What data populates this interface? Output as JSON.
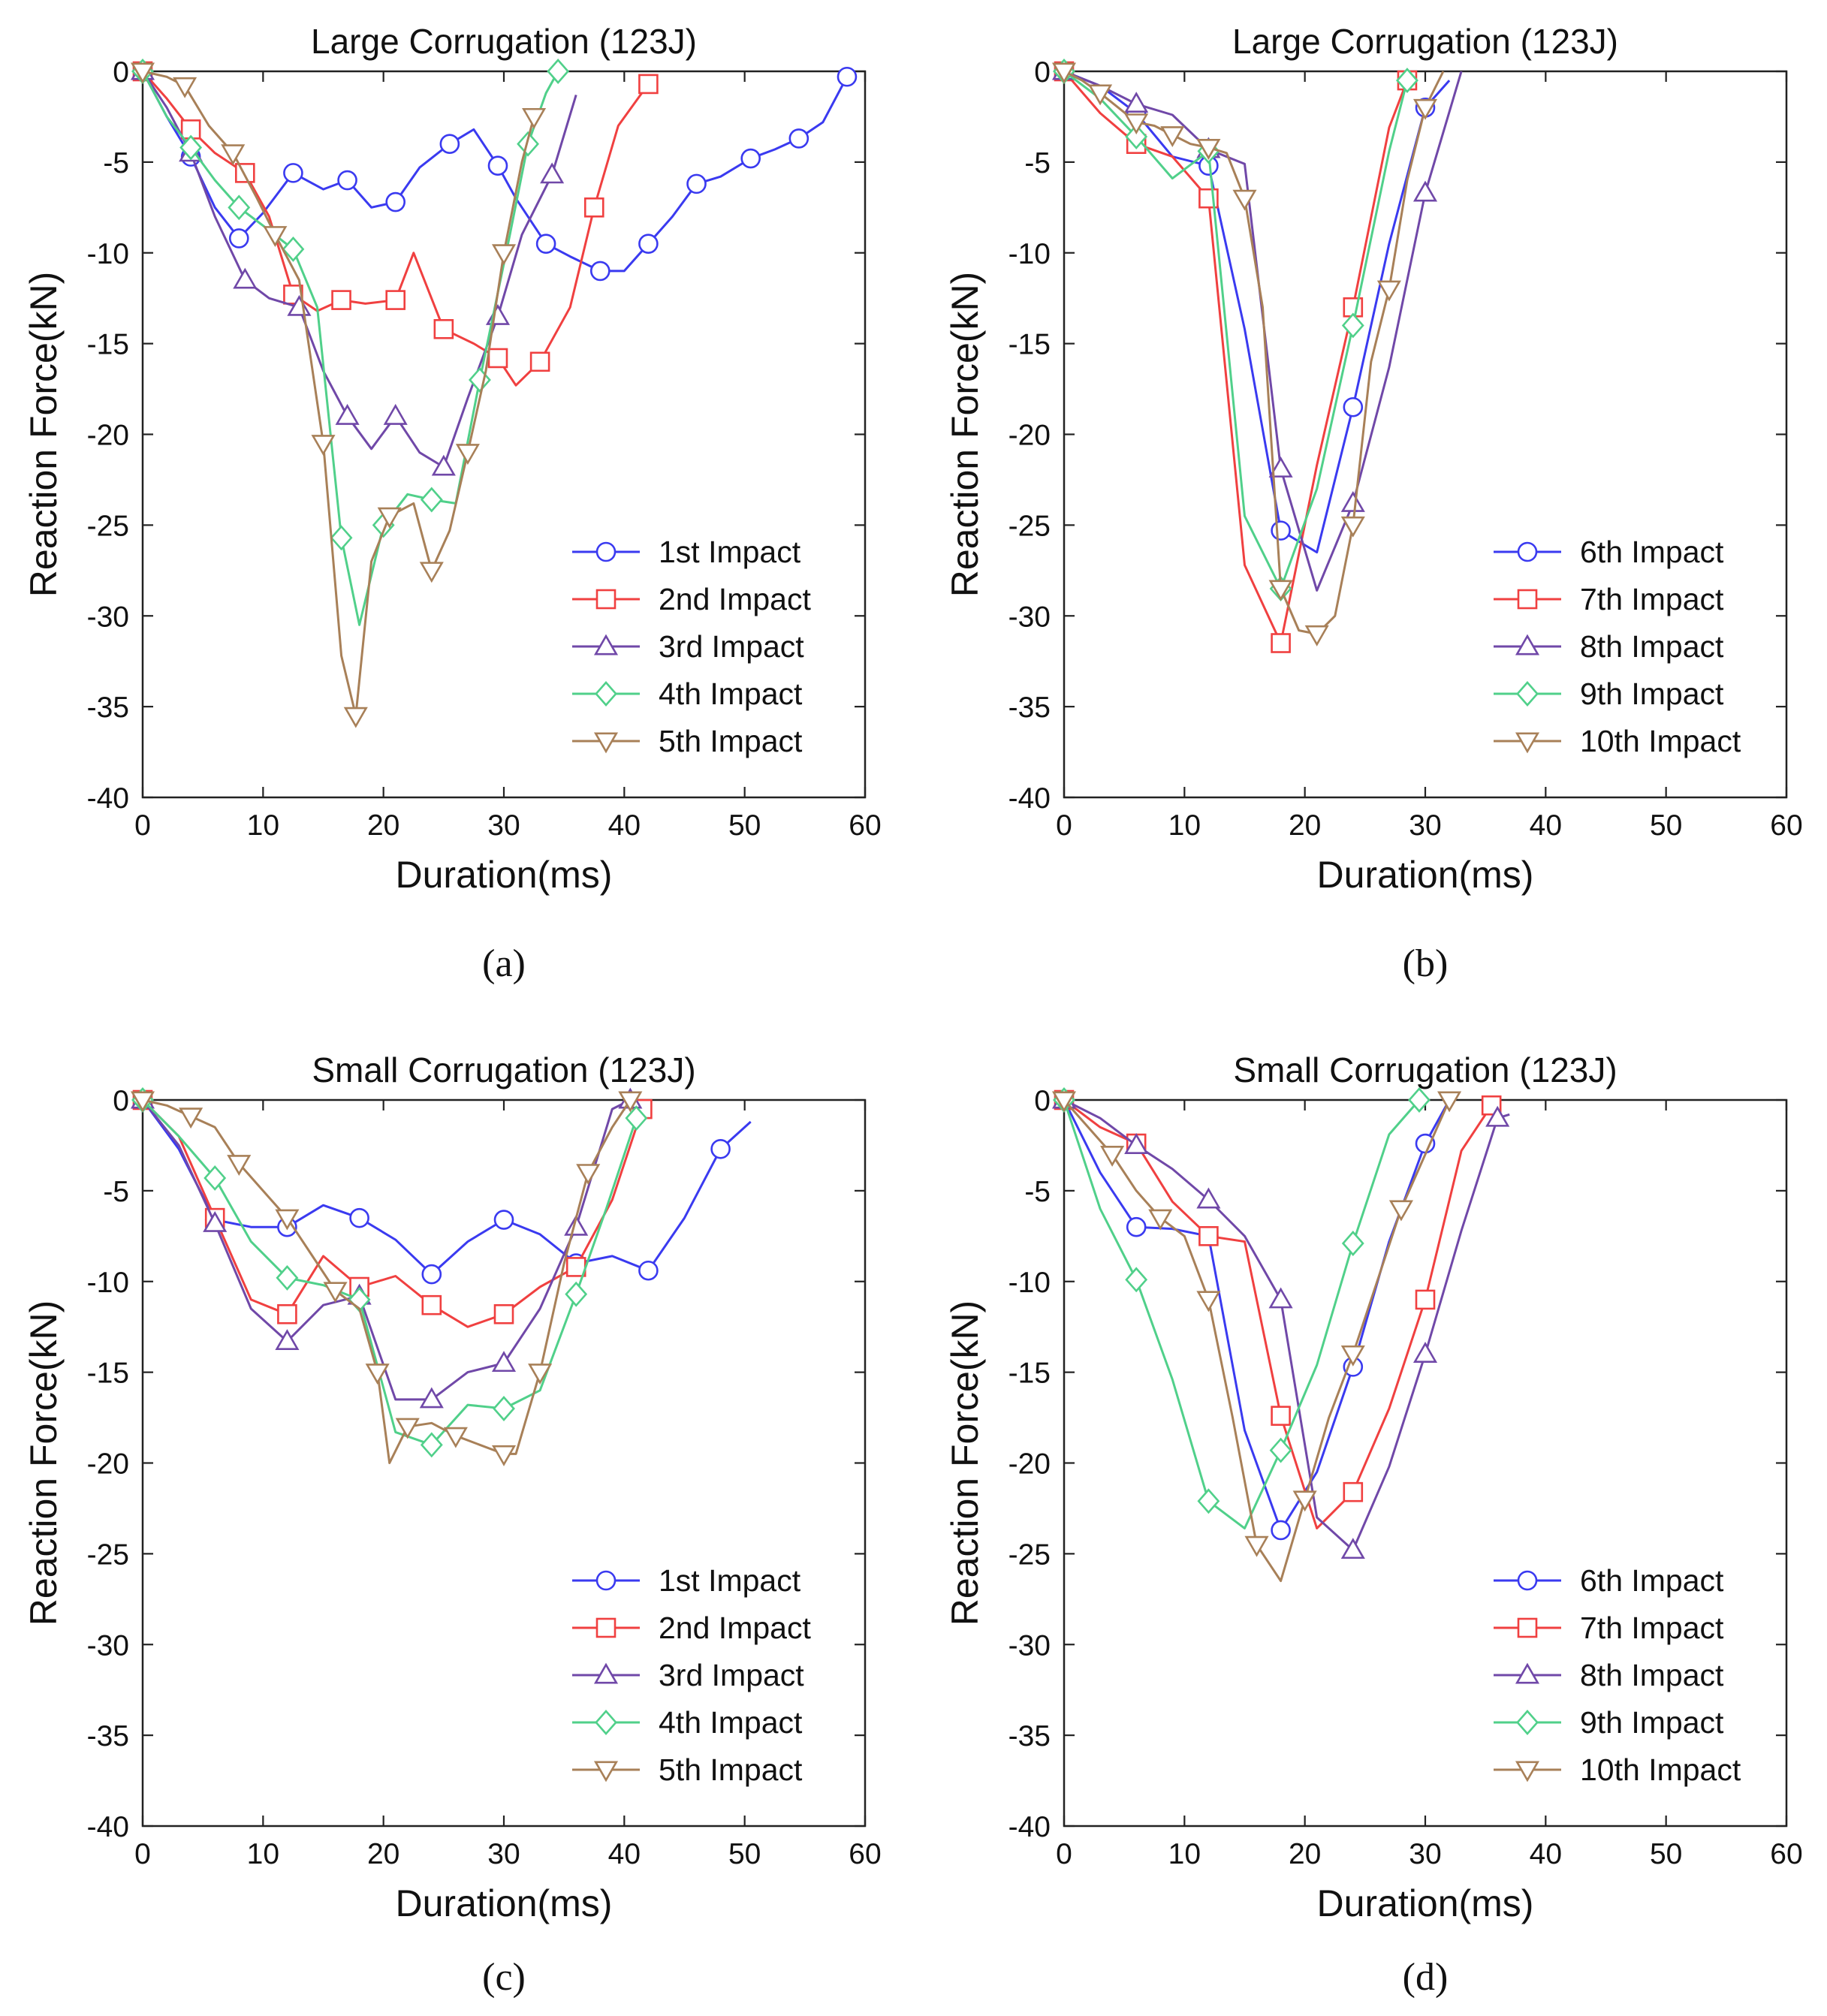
{
  "chart_data": [
    {
      "type": "line",
      "panel_label": "(a)",
      "title": "Large Corrugation (123J)",
      "xlabel": "Duration(ms)",
      "ylabel": "Reaction Force(kN)",
      "xlim": [
        0,
        60
      ],
      "ylim": [
        -40,
        0
      ],
      "xticks": [
        0,
        10,
        20,
        30,
        40,
        50,
        60
      ],
      "yticks": [
        0,
        -5,
        -10,
        -15,
        -20,
        -25,
        -30,
        -35,
        -40
      ],
      "grid": false,
      "legend_position": "bottom-right",
      "series": [
        {
          "name": "1st Impact",
          "color": "#3a3af0",
          "marker": "circle",
          "x": [
            0,
            2,
            4,
            6,
            8,
            10,
            12.5,
            15,
            17,
            19,
            21,
            23,
            25.5,
            27.5,
            29.5,
            31,
            33.5,
            35.5,
            38,
            40,
            42,
            44,
            46,
            48,
            50.5,
            52.5,
            54.5,
            56.5,
            58.5
          ],
          "y": [
            0,
            -2.5,
            -4.7,
            -7.5,
            -9.2,
            -7.8,
            -5.6,
            -6.5,
            -6.0,
            -7.5,
            -7.2,
            -5.3,
            -4.0,
            -3.2,
            -5.2,
            -7.0,
            -9.5,
            -10.2,
            -11.0,
            -11.0,
            -9.5,
            -8.0,
            -6.2,
            -5.8,
            -4.8,
            -4.3,
            -3.7,
            -2.8,
            -0.3
          ]
        },
        {
          "name": "2nd Impact",
          "color": "#f04040",
          "marker": "square",
          "x": [
            0,
            2,
            4,
            6,
            8.5,
            10.5,
            12.5,
            14.5,
            16.5,
            18.5,
            21,
            22.5,
            25,
            27.5,
            29.5,
            31,
            33,
            35.5,
            37.5,
            39.5,
            42
          ],
          "y": [
            0,
            -1.5,
            -3.2,
            -4.5,
            -5.6,
            -8.0,
            -12.3,
            -13.2,
            -12.6,
            -12.8,
            -12.6,
            -10.0,
            -14.2,
            -15.0,
            -15.8,
            -17.3,
            -16.0,
            -13.0,
            -7.5,
            -3.0,
            -0.7
          ]
        },
        {
          "name": "3rd Impact",
          "color": "#7048a8",
          "marker": "triangle-up",
          "x": [
            0,
            2,
            4,
            6,
            8.5,
            10.5,
            13,
            15,
            17,
            19,
            21,
            23,
            25,
            27,
            29.5,
            31.5,
            34,
            36
          ],
          "y": [
            0,
            -2.0,
            -4.5,
            -8.0,
            -11.5,
            -12.5,
            -13.0,
            -16.5,
            -19.0,
            -20.8,
            -19.0,
            -21.0,
            -21.8,
            -18.0,
            -13.5,
            -9.0,
            -5.7,
            -1.3
          ]
        },
        {
          "name": "4th Impact",
          "color": "#50d08a",
          "marker": "diamond",
          "x": [
            0,
            2,
            4,
            6,
            8,
            10,
            12.5,
            14.5,
            16.5,
            18,
            20,
            22,
            24,
            26,
            28,
            30.5,
            32,
            33.5,
            34.5
          ],
          "y": [
            0,
            -2.5,
            -4.2,
            -6.0,
            -7.5,
            -8.5,
            -9.8,
            -13.0,
            -25.7,
            -30.5,
            -25.0,
            -23.3,
            -23.6,
            -23.8,
            -17.0,
            -9.0,
            -4.0,
            -1.2,
            0
          ]
        },
        {
          "name": "5th Impact",
          "color": "#a88058",
          "marker": "triangle-down",
          "x": [
            0,
            2,
            3.5,
            5.5,
            7.5,
            9.5,
            11,
            13,
            15,
            16.5,
            17.7,
            19,
            20.5,
            22.5,
            24,
            25.5,
            27,
            28.5,
            30,
            31.5,
            32.5
          ],
          "y": [
            0,
            -0.3,
            -0.8,
            -3.0,
            -4.5,
            -7.0,
            -9.0,
            -11.5,
            -20.5,
            -32.2,
            -35.5,
            -27.0,
            -24.5,
            -23.8,
            -27.5,
            -25.3,
            -21.0,
            -16.5,
            -10.0,
            -5.0,
            -2.5
          ]
        }
      ]
    },
    {
      "type": "line",
      "panel_label": "(b)",
      "title": "Large Corrugation (123J)",
      "xlabel": "Duration(ms)",
      "ylabel": "Reaction Force(kN)",
      "xlim": [
        0,
        60
      ],
      "ylim": [
        -40,
        0
      ],
      "xticks": [
        0,
        10,
        20,
        30,
        40,
        50,
        60
      ],
      "yticks": [
        0,
        -5,
        -10,
        -15,
        -20,
        -25,
        -30,
        -35,
        -40
      ],
      "grid": false,
      "legend_position": "bottom-right",
      "series": [
        {
          "name": "6th Impact",
          "color": "#3a3af0",
          "marker": "circle",
          "x": [
            0,
            3,
            6,
            9,
            12,
            15,
            18,
            21,
            24,
            27,
            30,
            32
          ],
          "y": [
            0,
            -0.8,
            -2.3,
            -4.7,
            -5.2,
            -14.2,
            -25.3,
            -26.5,
            -18.5,
            -9.5,
            -2.0,
            -0.5
          ]
        },
        {
          "name": "7th Impact",
          "color": "#f04040",
          "marker": "square",
          "x": [
            0,
            3,
            6,
            9,
            12,
            15,
            18,
            21,
            24,
            27,
            28.5
          ],
          "y": [
            0,
            -2.3,
            -4.0,
            -4.7,
            -7.0,
            -27.2,
            -31.5,
            -21.7,
            -13.0,
            -3.1,
            -0.5
          ]
        },
        {
          "name": "8th Impact",
          "color": "#7048a8",
          "marker": "triangle-up",
          "x": [
            0,
            3,
            6,
            9,
            12,
            15,
            18,
            21,
            24,
            27,
            30,
            33
          ],
          "y": [
            0,
            -0.8,
            -1.8,
            -2.4,
            -4.3,
            -5.1,
            -21.9,
            -28.6,
            -23.8,
            -16.3,
            -6.7,
            0
          ]
        },
        {
          "name": "9th Impact",
          "color": "#50d08a",
          "marker": "diamond",
          "x": [
            0,
            3,
            6,
            9,
            12,
            15,
            18,
            21,
            24,
            27,
            28.5
          ],
          "y": [
            0,
            -1.5,
            -3.6,
            -5.9,
            -4.4,
            -24.5,
            -28.5,
            -23.0,
            -14.0,
            -4.4,
            -0.5
          ]
        },
        {
          "name": "10th Impact",
          "color": "#a88058",
          "marker": "triangle-down",
          "x": [
            0,
            1.5,
            3,
            4.5,
            6,
            7.5,
            9,
            10.5,
            12,
            13.5,
            15,
            16.5,
            18,
            19.5,
            21,
            22.5,
            24,
            25.5,
            27,
            28.5,
            30,
            31.5
          ],
          "y": [
            0,
            -0.5,
            -1.2,
            -2.0,
            -2.8,
            -3.0,
            -3.5,
            -4.0,
            -4.2,
            -4.5,
            -7.0,
            -13.0,
            -28.5,
            -30.8,
            -31.0,
            -30.0,
            -25.0,
            -16.0,
            -12.0,
            -6.0,
            -2.0,
            0
          ]
        }
      ]
    },
    {
      "type": "line",
      "panel_label": "(c)",
      "title": "Small Corrugation (123J)",
      "xlabel": "Duration(ms)",
      "ylabel": "Reaction Force(kN)",
      "xlim": [
        0,
        60
      ],
      "ylim": [
        -40,
        0
      ],
      "xticks": [
        0,
        10,
        20,
        30,
        40,
        50,
        60
      ],
      "yticks": [
        0,
        -5,
        -10,
        -15,
        -20,
        -25,
        -30,
        -35,
        -40
      ],
      "grid": false,
      "legend_position": "bottom-right",
      "series": [
        {
          "name": "1st Impact",
          "color": "#3a3af0",
          "marker": "circle",
          "x": [
            0,
            3,
            6,
            9,
            12,
            15,
            18,
            21,
            24,
            27,
            30,
            33,
            36,
            39,
            42,
            45,
            48,
            50.5
          ],
          "y": [
            0,
            -2.7,
            -6.6,
            -7.0,
            -7.0,
            -5.8,
            -6.5,
            -7.7,
            -9.6,
            -7.8,
            -6.6,
            -7.4,
            -9.0,
            -8.6,
            -9.4,
            -6.5,
            -2.7,
            -1.2
          ]
        },
        {
          "name": "2nd Impact",
          "color": "#f04040",
          "marker": "square",
          "x": [
            0,
            3,
            6,
            9,
            12,
            15,
            18,
            21,
            24,
            27,
            30,
            33,
            36,
            39,
            41.5
          ],
          "y": [
            0,
            -2.0,
            -6.5,
            -11.0,
            -11.8,
            -8.6,
            -10.3,
            -9.7,
            -11.3,
            -12.5,
            -11.8,
            -10.3,
            -9.2,
            -5.5,
            -0.5
          ]
        },
        {
          "name": "3rd Impact",
          "color": "#7048a8",
          "marker": "triangle-up",
          "x": [
            0,
            3,
            6,
            9,
            12,
            15,
            18,
            21,
            24,
            27,
            30,
            33,
            36,
            39,
            40.5
          ],
          "y": [
            0,
            -2.5,
            -6.8,
            -11.5,
            -13.3,
            -11.3,
            -10.8,
            -16.5,
            -16.5,
            -15.0,
            -14.5,
            -11.5,
            -7.0,
            -0.5,
            0
          ]
        },
        {
          "name": "4th Impact",
          "color": "#50d08a",
          "marker": "diamond",
          "x": [
            0,
            3,
            6,
            9,
            12,
            15,
            18,
            21,
            24,
            27,
            30,
            33,
            36,
            38.5,
            41
          ],
          "y": [
            0,
            -2.0,
            -4.3,
            -7.8,
            -9.8,
            -10.2,
            -11.0,
            -18.3,
            -19.0,
            -16.8,
            -17.0,
            -16.0,
            -10.7,
            -6.0,
            -1.0
          ]
        },
        {
          "name": "5th Impact",
          "color": "#a88058",
          "marker": "triangle-down",
          "x": [
            0,
            2,
            4,
            6,
            8,
            10,
            12,
            14,
            16,
            18,
            19.5,
            20.5,
            22,
            24,
            26,
            28,
            30,
            31,
            33,
            35,
            37,
            39,
            40.5
          ],
          "y": [
            0,
            -0.3,
            -0.9,
            -1.5,
            -3.5,
            -5.0,
            -6.5,
            -8.5,
            -10.5,
            -11.5,
            -15.0,
            -20.0,
            -18.0,
            -17.8,
            -18.5,
            -19.0,
            -19.5,
            -19.5,
            -15.0,
            -9.0,
            -4.0,
            -1.5,
            0
          ]
        }
      ]
    },
    {
      "type": "line",
      "panel_label": "(d)",
      "title": "Small Corrugation (123J)",
      "xlabel": "Duration(ms)",
      "ylabel": "Reaction Force(kN)",
      "xlim": [
        0,
        60
      ],
      "ylim": [
        -40,
        0
      ],
      "xticks": [
        0,
        10,
        20,
        30,
        40,
        50,
        60
      ],
      "yticks": [
        0,
        -5,
        -10,
        -15,
        -20,
        -25,
        -30,
        -35,
        -40
      ],
      "grid": false,
      "legend_position": "bottom-right",
      "series": [
        {
          "name": "6th Impact",
          "color": "#3a3af0",
          "marker": "circle",
          "x": [
            0,
            3,
            6,
            9,
            12,
            15,
            18,
            21,
            24,
            27,
            30,
            32
          ],
          "y": [
            0,
            -4.0,
            -7.0,
            -7.1,
            -7.5,
            -18.2,
            -23.7,
            -20.5,
            -14.7,
            -7.8,
            -2.4,
            0
          ]
        },
        {
          "name": "7th Impact",
          "color": "#f04040",
          "marker": "square",
          "x": [
            0,
            3,
            6,
            9,
            12,
            15,
            18,
            21,
            24,
            27,
            30,
            33,
            35.5
          ],
          "y": [
            0,
            -1.5,
            -2.4,
            -5.6,
            -7.5,
            -7.8,
            -17.4,
            -23.6,
            -21.6,
            -17.0,
            -11.0,
            -2.8,
            -0.3
          ]
        },
        {
          "name": "8th Impact",
          "color": "#7048a8",
          "marker": "triangle-up",
          "x": [
            0,
            3,
            6,
            9,
            12,
            15,
            18,
            21,
            24,
            27,
            30,
            33,
            36,
            37
          ],
          "y": [
            0,
            -1.0,
            -2.5,
            -3.8,
            -5.5,
            -7.5,
            -11.0,
            -23.0,
            -24.8,
            -20.2,
            -14.0,
            -7.2,
            -1.0,
            -0.8
          ]
        },
        {
          "name": "9th Impact",
          "color": "#50d08a",
          "marker": "diamond",
          "x": [
            0,
            3,
            6,
            9,
            12,
            15,
            18,
            21,
            24,
            27,
            29.5
          ],
          "y": [
            0,
            -6.0,
            -9.9,
            -15.4,
            -22.1,
            -23.6,
            -19.3,
            -14.6,
            -7.9,
            -1.9,
            0
          ]
        },
        {
          "name": "10th Impact",
          "color": "#a88058",
          "marker": "triangle-down",
          "x": [
            0,
            2,
            4,
            6,
            8,
            10,
            12,
            14,
            16,
            18,
            20,
            22,
            24,
            26,
            28,
            30,
            32
          ],
          "y": [
            0,
            -1.5,
            -3.0,
            -5.0,
            -6.5,
            -7.5,
            -11.0,
            -17.5,
            -24.5,
            -26.5,
            -22.0,
            -17.5,
            -14.0,
            -10.0,
            -6.0,
            -3.0,
            0
          ]
        }
      ]
    }
  ]
}
